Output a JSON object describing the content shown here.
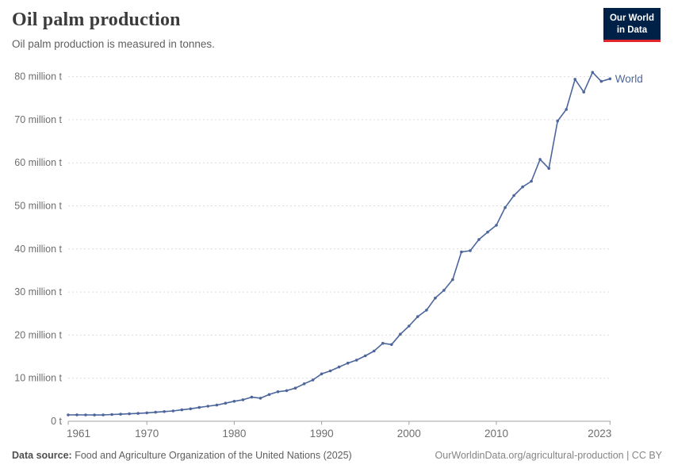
{
  "header": {
    "title": "Oil palm production",
    "subtitle": "Oil palm production is measured in tonnes."
  },
  "logo": {
    "line1": "Our World",
    "line2": "in Data",
    "bg_color": "#002147",
    "accent_color": "#e2262c"
  },
  "chart_data": {
    "type": "line",
    "title": "Oil palm production",
    "unit": "tonnes",
    "grid": "dashed-horizontal",
    "legend_position": "end-of-line",
    "xlim": [
      1961,
      2023
    ],
    "ylim": [
      0,
      80000000
    ],
    "x_ticks": [
      1961,
      1970,
      1980,
      1990,
      2000,
      2010,
      2023
    ],
    "y_ticks": [
      {
        "value": 0,
        "label": "0 t"
      },
      {
        "value": 10000000,
        "label": "10 million t"
      },
      {
        "value": 20000000,
        "label": "20 million t"
      },
      {
        "value": 30000000,
        "label": "30 million t"
      },
      {
        "value": 40000000,
        "label": "40 million t"
      },
      {
        "value": 50000000,
        "label": "50 million t"
      },
      {
        "value": 60000000,
        "label": "60 million t"
      },
      {
        "value": 70000000,
        "label": "70 million t"
      },
      {
        "value": 80000000,
        "label": "80 million t"
      }
    ],
    "series": [
      {
        "name": "World",
        "color": "#4c669c",
        "x": [
          1961,
          1962,
          1963,
          1964,
          1965,
          1966,
          1967,
          1968,
          1969,
          1970,
          1971,
          1972,
          1973,
          1974,
          1975,
          1976,
          1977,
          1978,
          1979,
          1980,
          1981,
          1982,
          1983,
          1984,
          1985,
          1986,
          1987,
          1988,
          1989,
          1990,
          1991,
          1992,
          1993,
          1994,
          1995,
          1996,
          1997,
          1998,
          1999,
          2000,
          2001,
          2002,
          2003,
          2004,
          2005,
          2006,
          2007,
          2008,
          2009,
          2010,
          2011,
          2012,
          2013,
          2014,
          2015,
          2016,
          2017,
          2018,
          2019,
          2020,
          2021,
          2022,
          2023
        ],
        "values": [
          1480000,
          1500000,
          1470000,
          1450000,
          1480000,
          1560000,
          1640000,
          1730000,
          1830000,
          1950000,
          2100000,
          2250000,
          2400000,
          2650000,
          2900000,
          3200000,
          3500000,
          3750000,
          4200000,
          4650000,
          5000000,
          5600000,
          5350000,
          6200000,
          6850000,
          7100000,
          7700000,
          8700000,
          9600000,
          11000000,
          11700000,
          12600000,
          13500000,
          14200000,
          15200000,
          16300000,
          18100000,
          17800000,
          20200000,
          22100000,
          24300000,
          25800000,
          28600000,
          30400000,
          32900000,
          39300000,
          39600000,
          42200000,
          43900000,
          45500000,
          49600000,
          52400000,
          54400000,
          55700000,
          60800000,
          58700000,
          69700000,
          72400000,
          79400000,
          76400000,
          81000000,
          78900000,
          79500000
        ]
      }
    ]
  },
  "footer": {
    "source_label": "Data source:",
    "source_text": " Food and Agriculture Organization of the United Nations (2025)",
    "attribution": "OurWorldinData.org/agricultural-production | CC BY"
  }
}
